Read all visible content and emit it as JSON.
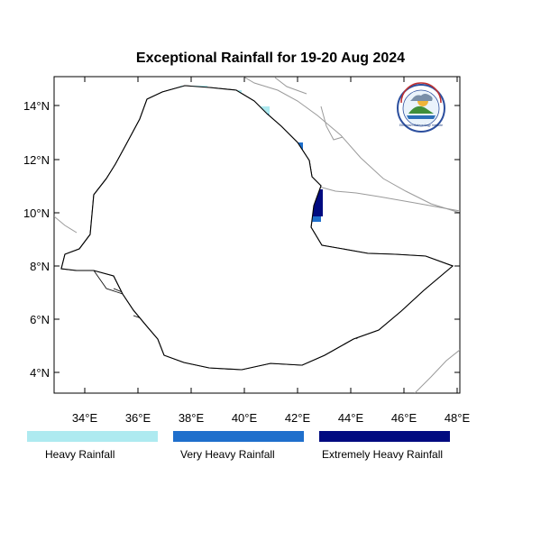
{
  "title": "Exceptional Rainfall for 19-20 Aug 2024",
  "axes": {
    "x_ticks": [
      "34°E",
      "36°E",
      "38°E",
      "40°E",
      "42°E",
      "44°E",
      "46°E",
      "48°E"
    ],
    "y_ticks": [
      "14°N",
      "12°N",
      "10°N",
      "8°N",
      "6°N",
      "4°N"
    ]
  },
  "colors": {
    "heavy": "#aeeaf0",
    "very_heavy": "#1f6fcc",
    "extremely_heavy": "#000a80",
    "boundary": "#000000",
    "neighbor_boundary": "#9a9a9a",
    "frame": "#000000"
  },
  "legend": [
    {
      "label": "Heavy Rainfall",
      "color": "#aeeaf0"
    },
    {
      "label": "Very Heavy Rainfall",
      "color": "#1f6fcc"
    },
    {
      "label": "Extremely Heavy Rainfall",
      "color": "#000a80"
    }
  ],
  "logo": {
    "icon": "meteorology-agency-logo-icon",
    "text": "Ethiopian Meteorology Institute"
  }
}
